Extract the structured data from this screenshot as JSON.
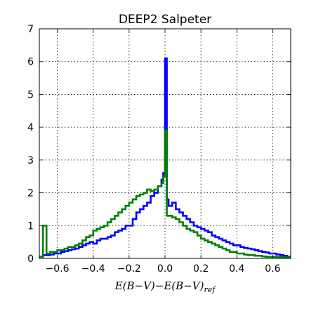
{
  "chart_data": {
    "type": "line",
    "style": "step-histogram",
    "title": "DEEP2 Salpeter",
    "xlabel": "E(B−V)−E(B−V)",
    "xlabel_subscript": "ref",
    "ylabel": "",
    "xlim": [
      -0.7,
      0.7
    ],
    "ylim": [
      0,
      7
    ],
    "xticks": [
      -0.6,
      -0.4,
      -0.2,
      0.0,
      0.2,
      0.4,
      0.6
    ],
    "xtick_labels": [
      "−0.6",
      "−0.4",
      "−0.2",
      "0.0",
      "0.2",
      "0.4",
      "0.6"
    ],
    "yticks": [
      0,
      1,
      2,
      3,
      4,
      5,
      6,
      7
    ],
    "ytick_labels": [
      "0",
      "1",
      "2",
      "3",
      "4",
      "5",
      "6",
      "7"
    ],
    "grid": true,
    "legend": "none",
    "series": [
      {
        "color": "#0000ff",
        "x": [
          -0.7,
          -0.68,
          -0.66,
          -0.64,
          -0.62,
          -0.6,
          -0.58,
          -0.56,
          -0.54,
          -0.52,
          -0.5,
          -0.48,
          -0.46,
          -0.44,
          -0.42,
          -0.4,
          -0.38,
          -0.36,
          -0.34,
          -0.32,
          -0.3,
          -0.28,
          -0.26,
          -0.24,
          -0.22,
          -0.2,
          -0.18,
          -0.16,
          -0.14,
          -0.12,
          -0.1,
          -0.08,
          -0.06,
          -0.04,
          -0.02,
          -0.01,
          0.0,
          0.01,
          0.02,
          0.04,
          0.06,
          0.08,
          0.1,
          0.12,
          0.14,
          0.16,
          0.18,
          0.2,
          0.22,
          0.24,
          0.26,
          0.28,
          0.3,
          0.32,
          0.34,
          0.36,
          0.38,
          0.4,
          0.42,
          0.44,
          0.46,
          0.48,
          0.5,
          0.52,
          0.54,
          0.56,
          0.58,
          0.6,
          0.62,
          0.64,
          0.66,
          0.68,
          0.7
        ],
        "y": [
          0.05,
          0.1,
          0.1,
          0.12,
          0.15,
          0.15,
          0.2,
          0.22,
          0.25,
          0.28,
          0.3,
          0.35,
          0.4,
          0.45,
          0.5,
          0.45,
          0.55,
          0.6,
          0.6,
          0.65,
          0.7,
          0.8,
          0.85,
          0.9,
          1.0,
          1.0,
          1.2,
          1.4,
          1.5,
          1.6,
          1.7,
          1.9,
          2.0,
          2.2,
          2.4,
          2.6,
          6.1,
          1.8,
          1.6,
          1.7,
          1.5,
          1.4,
          1.3,
          1.2,
          1.1,
          1.0,
          0.95,
          0.9,
          0.85,
          0.8,
          0.7,
          0.65,
          0.6,
          0.55,
          0.5,
          0.45,
          0.4,
          0.4,
          0.35,
          0.32,
          0.3,
          0.28,
          0.25,
          0.22,
          0.2,
          0.18,
          0.15,
          0.15,
          0.12,
          0.1,
          0.08,
          0.05,
          0.05
        ]
      },
      {
        "color": "#008000",
        "x": [
          -0.7,
          -0.68,
          -0.66,
          -0.64,
          -0.62,
          -0.6,
          -0.58,
          -0.56,
          -0.54,
          -0.52,
          -0.5,
          -0.48,
          -0.46,
          -0.44,
          -0.42,
          -0.4,
          -0.38,
          -0.36,
          -0.34,
          -0.32,
          -0.3,
          -0.28,
          -0.26,
          -0.24,
          -0.22,
          -0.2,
          -0.18,
          -0.16,
          -0.14,
          -0.12,
          -0.1,
          -0.08,
          -0.06,
          -0.04,
          -0.02,
          -0.01,
          0.0,
          0.01,
          0.02,
          0.04,
          0.06,
          0.08,
          0.1,
          0.12,
          0.14,
          0.16,
          0.18,
          0.2,
          0.22,
          0.24,
          0.26,
          0.28,
          0.3,
          0.32,
          0.34,
          0.36,
          0.38,
          0.4,
          0.42,
          0.44,
          0.46,
          0.48,
          0.5,
          0.52,
          0.54,
          0.56,
          0.58,
          0.6,
          0.62,
          0.64,
          0.66,
          0.68,
          0.7
        ],
        "y": [
          0.05,
          1.0,
          0.15,
          0.2,
          0.2,
          0.25,
          0.25,
          0.3,
          0.35,
          0.35,
          0.4,
          0.45,
          0.55,
          0.65,
          0.7,
          0.85,
          0.9,
          0.95,
          1.0,
          1.1,
          1.2,
          1.3,
          1.4,
          1.5,
          1.6,
          1.7,
          1.8,
          1.9,
          1.95,
          2.0,
          2.1,
          2.05,
          2.1,
          2.2,
          2.3,
          2.5,
          3.9,
          1.3,
          1.3,
          1.25,
          1.2,
          1.1,
          1.0,
          0.9,
          0.85,
          0.8,
          0.7,
          0.6,
          0.55,
          0.5,
          0.45,
          0.4,
          0.35,
          0.3,
          0.25,
          0.2,
          0.2,
          0.15,
          0.15,
          0.12,
          0.1,
          0.1,
          0.08,
          0.08,
          0.06,
          0.05,
          0.05,
          0.05,
          0.04,
          0.04,
          0.03,
          0.03,
          0.03
        ]
      }
    ]
  }
}
